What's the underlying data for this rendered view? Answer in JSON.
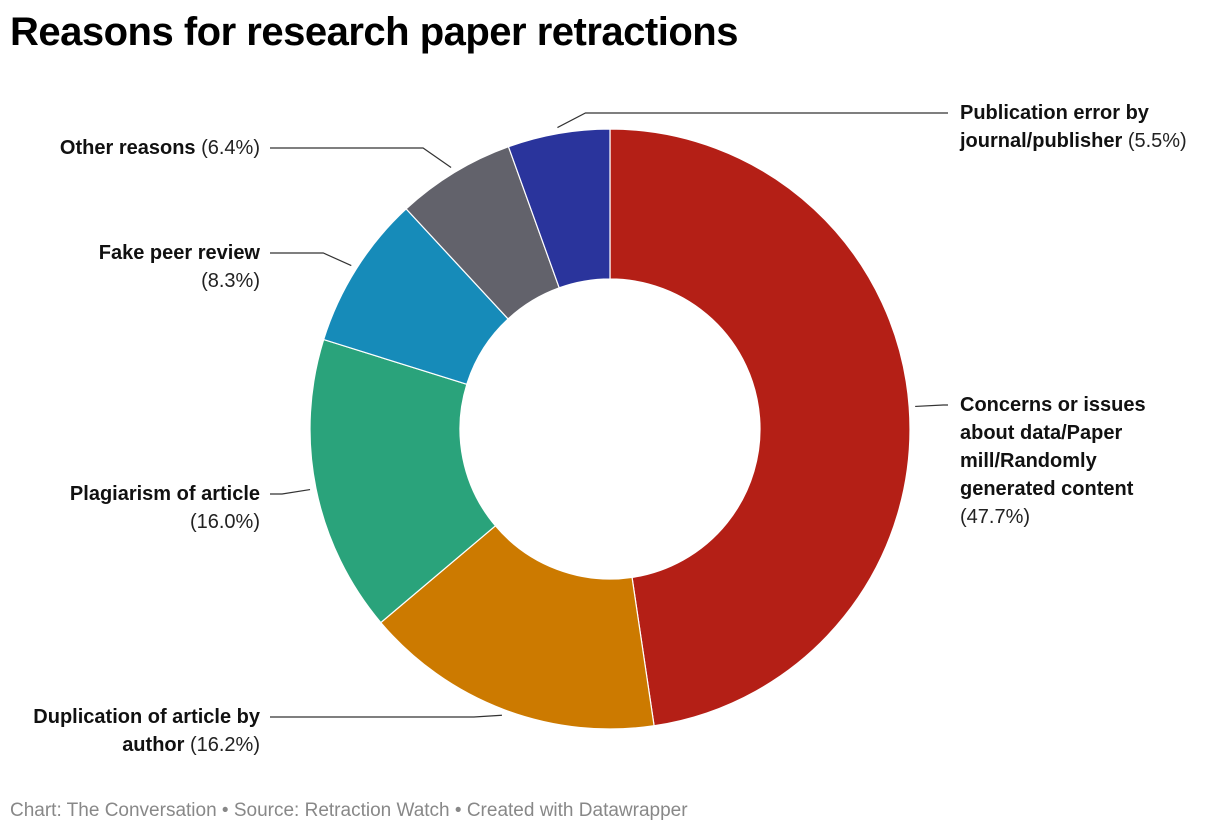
{
  "chart_data": {
    "type": "donut",
    "title": "Reasons for research paper retractions",
    "categories": [
      "Concerns or issues about data/Paper mill/Randomly generated content",
      "Duplication of article by author",
      "Plagiarism of article",
      "Fake peer review",
      "Other reasons",
      "Publication error by journal/publisher"
    ],
    "values": [
      47.7,
      16.2,
      16.0,
      8.3,
      6.4,
      5.5
    ],
    "value_labels": [
      "(47.7%)",
      "(16.2%)",
      "(16.0%)",
      "(8.3%)",
      "(6.4%)",
      "(5.5%)"
    ],
    "colors": [
      "#b41f16",
      "#cc7a00",
      "#2aa37b",
      "#168bb9",
      "#62626b",
      "#2a349c"
    ],
    "footer": "Chart: The Conversation • Source: Retraction Watch • Created with Datawrapper"
  }
}
